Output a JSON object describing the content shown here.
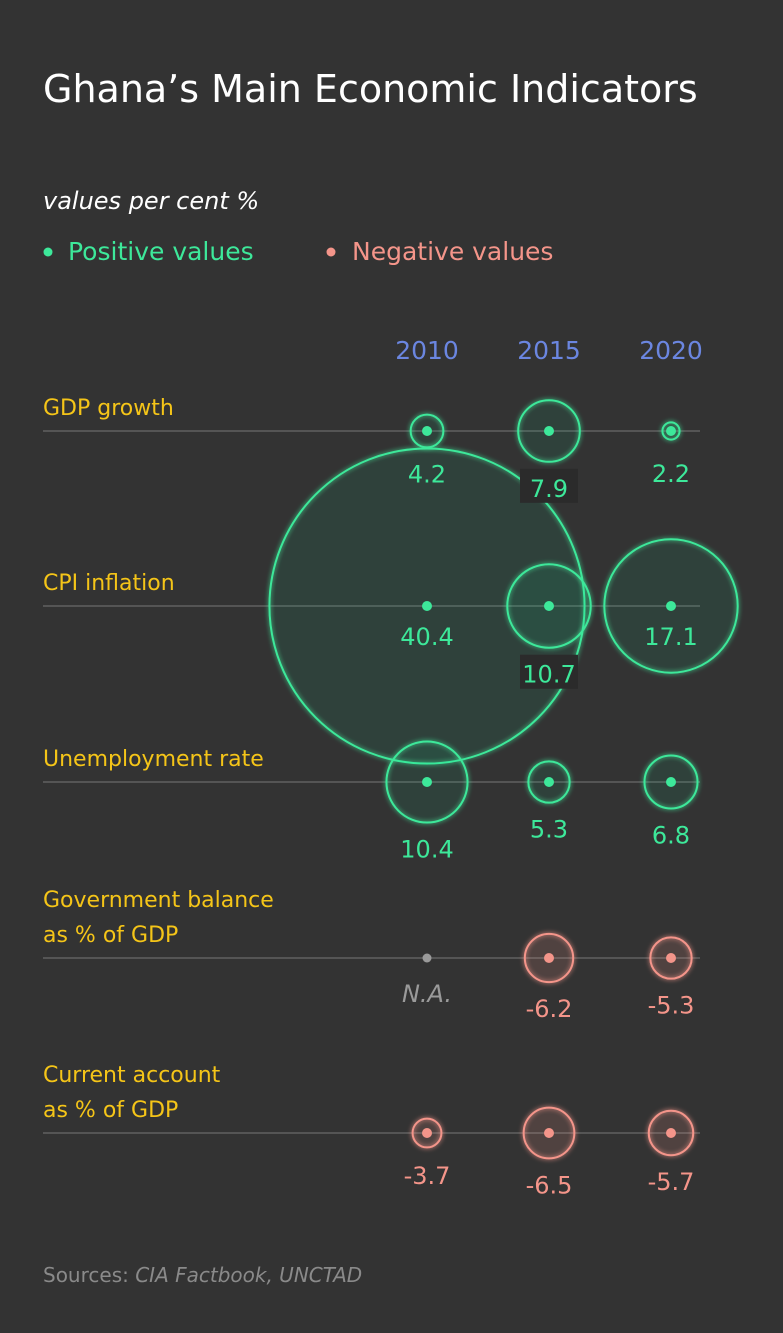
{
  "chart_data": {
    "type": "bubble-table",
    "title": "Ghana’s Main Economic Indicators",
    "subtitle": "values per cent %",
    "legend": {
      "placement": "top-left",
      "positive_label": "Positive values",
      "negative_label": "Negative values"
    },
    "columns": [
      "2010",
      "2015",
      "2020"
    ],
    "rows": [
      {
        "label": [
          "GDP growth"
        ],
        "values": [
          4.2,
          7.9,
          2.2
        ]
      },
      {
        "label": [
          "CPI inflation"
        ],
        "values": [
          40.4,
          10.7,
          17.1
        ]
      },
      {
        "label": [
          "Unemployment rate"
        ],
        "values": [
          10.4,
          5.3,
          6.8
        ]
      },
      {
        "label": [
          "Government balance",
          "as % of GDP"
        ],
        "values": [
          null,
          -6.2,
          -5.3
        ]
      },
      {
        "label": [
          "Current account",
          "as % of GDP"
        ],
        "values": [
          -3.7,
          -6.5,
          -5.7
        ]
      }
    ],
    "missing_label": "N.A.",
    "value_labels": [
      [
        "4.2",
        "7.9",
        "2.2"
      ],
      [
        "40.4",
        "10.7",
        "17.1"
      ],
      [
        "10.4",
        "5.3",
        "6.8"
      ],
      [
        "N.A.",
        "-6.2",
        "-5.3"
      ],
      [
        "-3.7",
        "-6.5",
        "-5.7"
      ]
    ],
    "source_prefix": "Sources: ",
    "source": "CIA Factbook, UNCTAD"
  },
  "colors": {
    "background": "#333333",
    "positive": "#3de89a",
    "negative": "#f4958a",
    "missing": "#9a9a9a",
    "row_label": "#f5c518",
    "year": "#6b86e0"
  }
}
